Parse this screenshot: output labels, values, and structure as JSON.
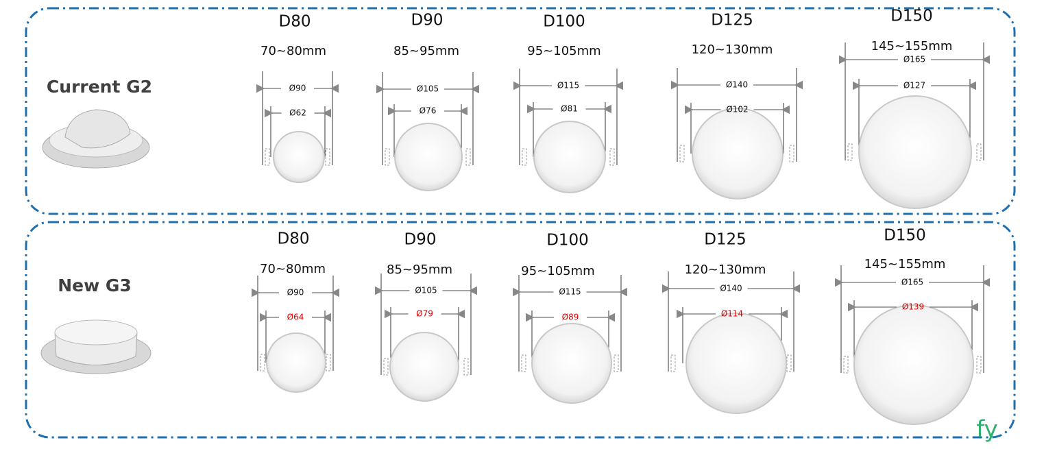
{
  "panels": [
    {
      "label": "Current G2",
      "items": [
        {
          "name": "D80",
          "cutout": "70~80mm",
          "outer": "Ø90",
          "inner": "Ø62"
        },
        {
          "name": "D90",
          "cutout": "85~95mm",
          "outer": "Ø105",
          "inner": "Ø76"
        },
        {
          "name": "D100",
          "cutout": "95~105mm",
          "outer": "Ø115",
          "inner": "Ø81"
        },
        {
          "name": "D125",
          "cutout": "120~130mm",
          "outer": "Ø140",
          "inner": "Ø102"
        },
        {
          "name": "D150",
          "cutout": "145~155mm",
          "outer": "Ø165",
          "inner": "Ø127"
        }
      ]
    },
    {
      "label": "New G3",
      "items": [
        {
          "name": "D80",
          "cutout": "70~80mm",
          "outer": "Ø90",
          "inner": "Ø64"
        },
        {
          "name": "D90",
          "cutout": "85~95mm",
          "outer": "Ø105",
          "inner": "Ø79"
        },
        {
          "name": "D100",
          "cutout": "95~105mm",
          "outer": "Ø115",
          "inner": "Ø89"
        },
        {
          "name": "D125",
          "cutout": "120~130mm",
          "outer": "Ø140",
          "inner": "Ø114"
        },
        {
          "name": "D150",
          "cutout": "145~155mm",
          "outer": "Ø165",
          "inner": "Ø139"
        }
      ]
    }
  ],
  "logo": "fy"
}
